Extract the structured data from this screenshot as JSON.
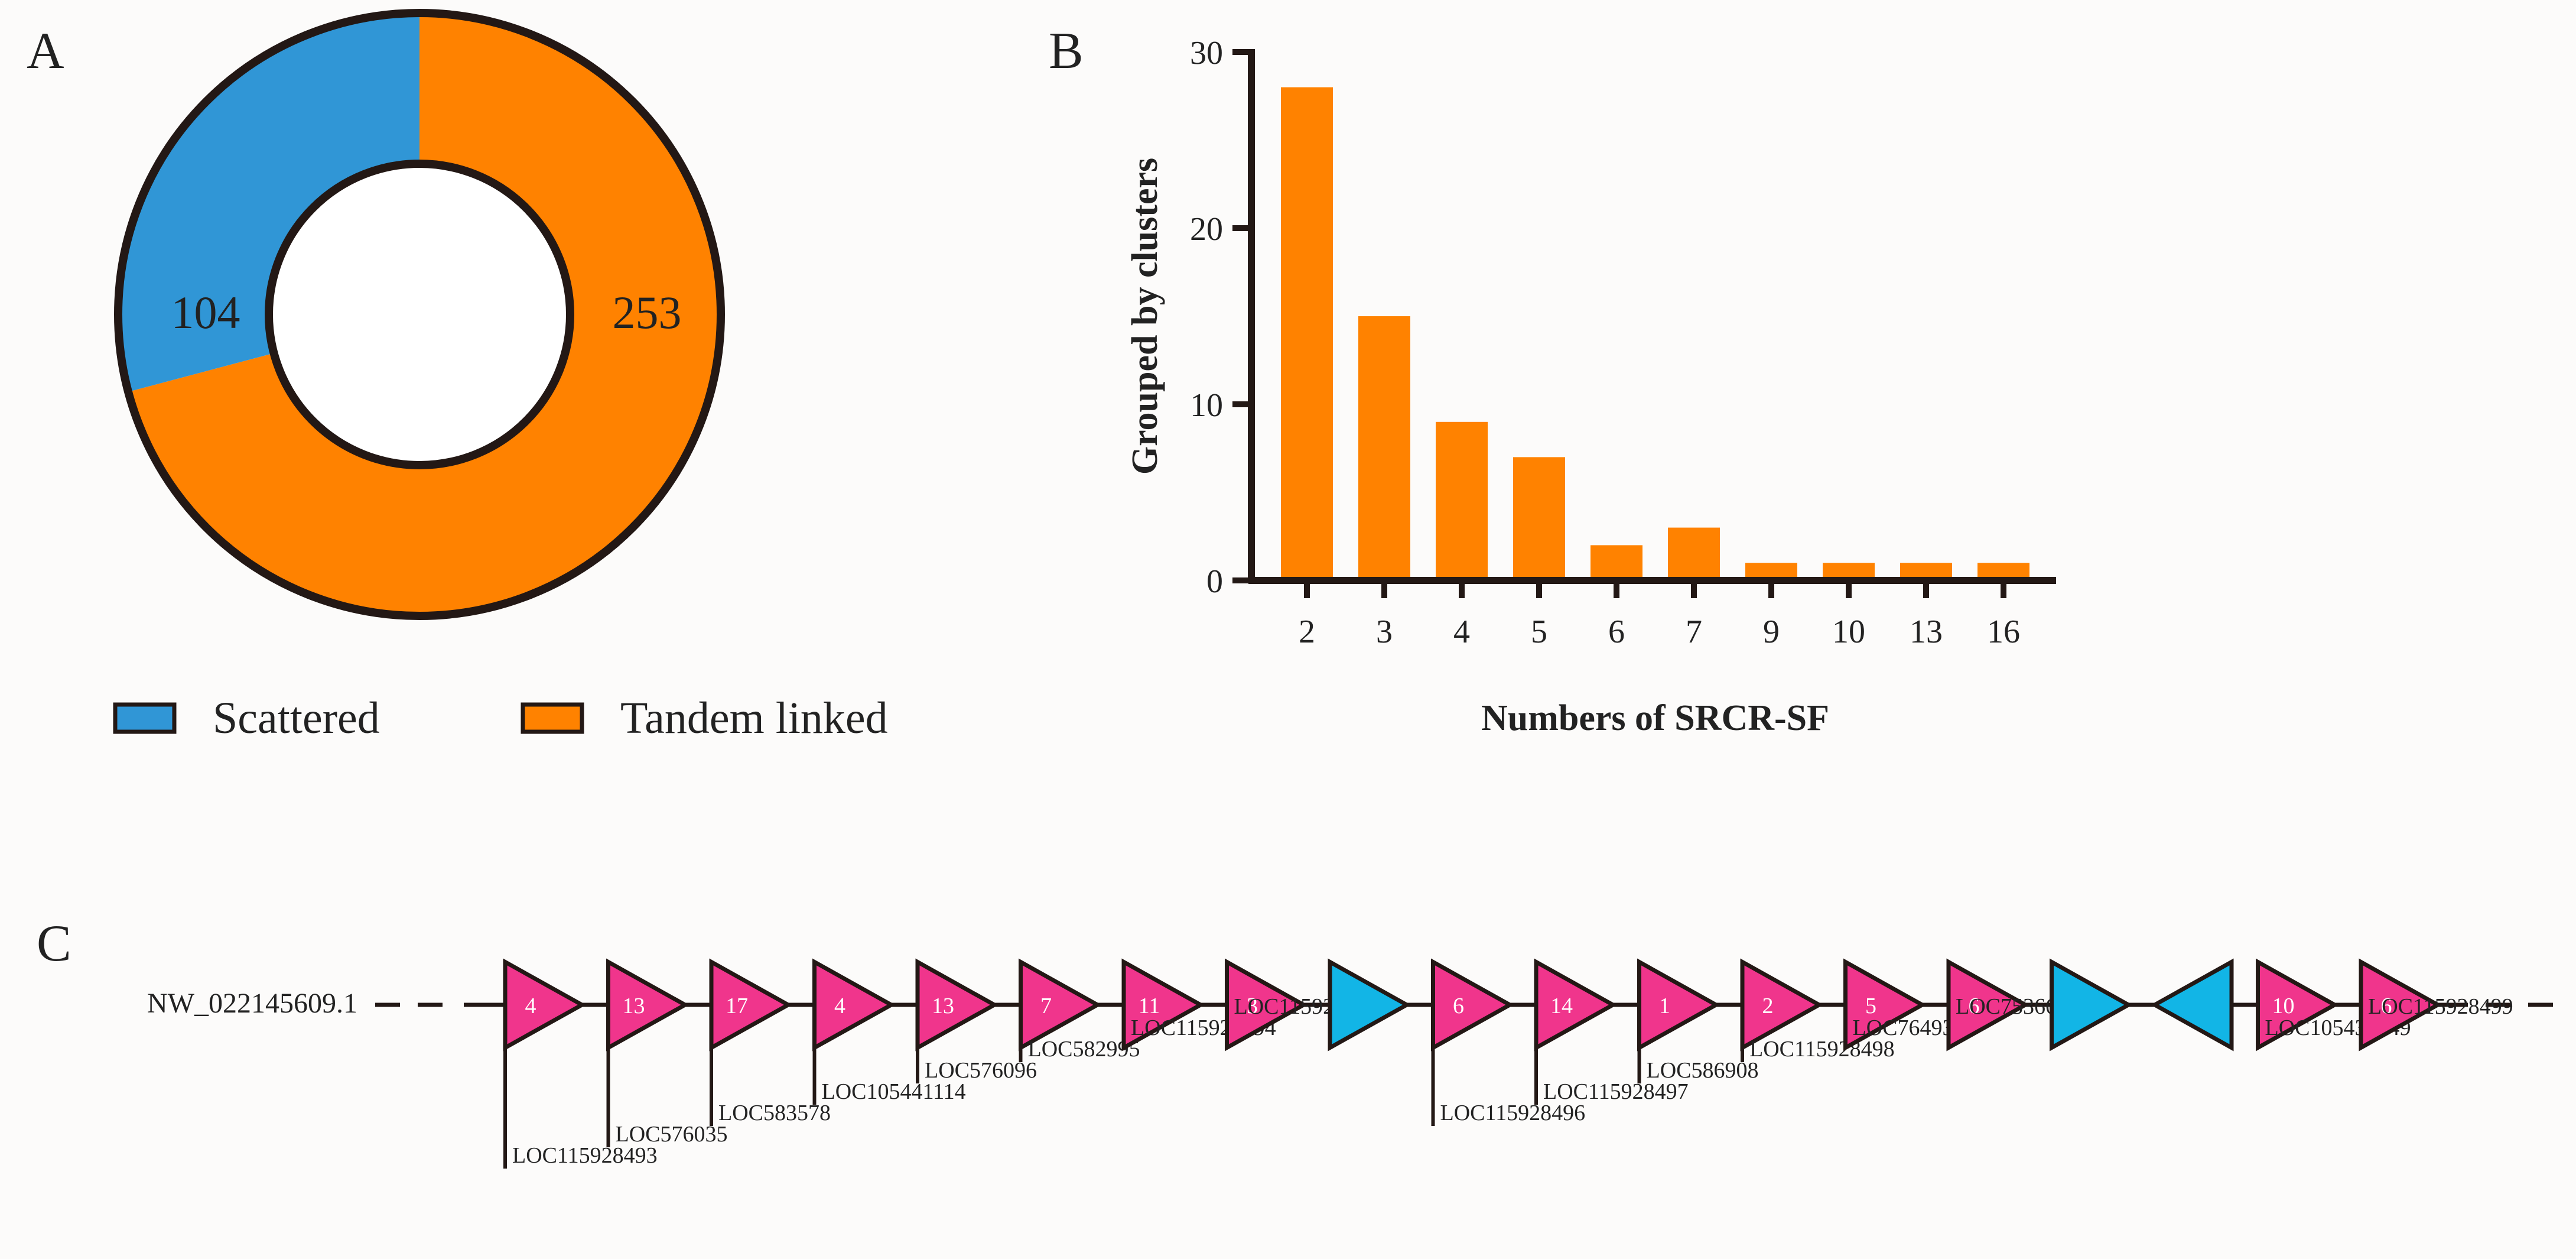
{
  "panels": {
    "a": "A",
    "b": "B",
    "c": "C"
  },
  "colors": {
    "scattered": "#3096d6",
    "tandem": "#ff8200",
    "bar": "#ff8200",
    "pink": "#f0358c",
    "cyan": "#12b5e6",
    "outline": "#231815"
  },
  "chart_data": [
    {
      "type": "pie",
      "style": "donut",
      "slices": [
        {
          "label": "Scattered",
          "value": 104
        },
        {
          "label": "Tandem linked",
          "value": 253
        }
      ],
      "legend": [
        "Scattered",
        "Tandem linked"
      ],
      "legend_position": "bottom"
    },
    {
      "type": "bar",
      "categories": [
        "2",
        "3",
        "4",
        "5",
        "6",
        "7",
        "9",
        "10",
        "13",
        "16"
      ],
      "values": [
        28,
        15,
        9,
        7,
        2,
        3,
        1,
        1,
        1,
        1
      ],
      "xlabel": "Numbers of SRCR-SF",
      "ylabel": "Grouped by clusters",
      "ylim": [
        0,
        30
      ],
      "yticks": [
        0,
        10,
        20,
        30
      ],
      "grid": false
    }
  ],
  "cluster": {
    "chromosome": "NW_022145609.1",
    "genes": [
      {
        "type": "pink",
        "direction": "right",
        "number": "4",
        "locus": "LOC115928493",
        "level": 5
      },
      {
        "type": "pink",
        "direction": "right",
        "number": "13",
        "locus": "LOC576035",
        "level": 4
      },
      {
        "type": "pink",
        "direction": "right",
        "number": "17",
        "locus": "LOC583578",
        "level": 3
      },
      {
        "type": "pink",
        "direction": "right",
        "number": "4",
        "locus": "LOC105441114",
        "level": 2
      },
      {
        "type": "pink",
        "direction": "right",
        "number": "13",
        "locus": "LOC576096",
        "level": 1
      },
      {
        "type": "pink",
        "direction": "right",
        "number": "7",
        "locus": "LOC582995",
        "level": 0
      },
      {
        "type": "pink",
        "direction": "right",
        "number": "11",
        "locus": "LOC115928494",
        "level": -1
      },
      {
        "type": "pink",
        "direction": "right",
        "number": "3",
        "locus": "LOC115928495",
        "level": -2
      },
      {
        "type": "cyan",
        "direction": "right",
        "number": "",
        "locus": "",
        "level": null
      },
      {
        "type": "pink",
        "direction": "right",
        "number": "6",
        "locus": "LOC115928496",
        "level": 3
      },
      {
        "type": "pink",
        "direction": "right",
        "number": "14",
        "locus": "LOC115928497",
        "level": 2
      },
      {
        "type": "pink",
        "direction": "right",
        "number": "1",
        "locus": "LOC586908",
        "level": 1
      },
      {
        "type": "pink",
        "direction": "right",
        "number": "2",
        "locus": "LOC115928498",
        "level": 0
      },
      {
        "type": "pink",
        "direction": "right",
        "number": "5",
        "locus": "LOC764936",
        "level": -1
      },
      {
        "type": "pink",
        "direction": "right",
        "number": "6",
        "locus": "LOC753661",
        "level": -2
      },
      {
        "type": "cyan",
        "direction": "right",
        "number": "",
        "locus": "",
        "level": null
      },
      {
        "type": "cyan",
        "direction": "left",
        "number": "",
        "locus": "",
        "level": null
      },
      {
        "type": "pink",
        "direction": "right",
        "number": "10",
        "locus": "LOC105436449",
        "level": -1
      },
      {
        "type": "pink",
        "direction": "right",
        "number": "6",
        "locus": "LOC115928499",
        "level": -2
      }
    ]
  }
}
